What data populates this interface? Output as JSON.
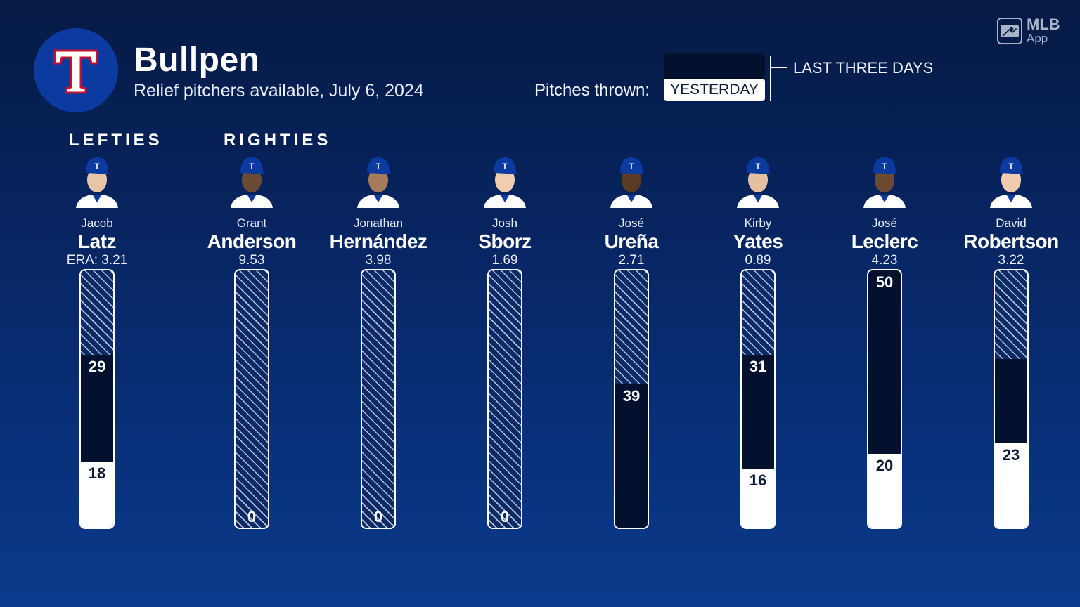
{
  "header": {
    "title": "Bullpen",
    "subtitle": "Relief pitchers available, July 6, 2024",
    "team_logo_icon": "rangers-t-logo-icon",
    "brand_icon": "mlb-app-icon",
    "brand_line1": "MLB",
    "brand_line2": "App"
  },
  "legend": {
    "label": "Pitches thrown:",
    "yesterday": "YESTERDAY",
    "last_three_days": "LAST THREE DAYS"
  },
  "groups": {
    "lefties": "LEFTIES",
    "righties": "RIGHTIES"
  },
  "colors": {
    "background_top": "#061a45",
    "background_bottom": "#0a3a8c",
    "last_three_days": "#03112e",
    "yesterday": "#ffffff",
    "available_hatch": "#0b2a66"
  },
  "chart_data": {
    "type": "bar",
    "stacked": true,
    "categories": [
      "Jacob Latz",
      "Grant Anderson",
      "Jonathan Hernández",
      "Josh Sborz",
      "José Ureña",
      "Kirby Yates",
      "José Leclerc",
      "David Robertson"
    ],
    "series": [
      {
        "name": "YESTERDAY",
        "values": [
          18,
          0,
          0,
          0,
          0,
          16,
          20,
          23
        ]
      },
      {
        "name": "LAST THREE DAYS",
        "values": [
          29,
          0,
          0,
          0,
          39,
          31,
          50,
          23
        ]
      }
    ],
    "ylim": [
      0,
      70
    ],
    "grid": false,
    "legend_position": "top-right"
  },
  "players": [
    {
      "first": "Jacob",
      "last": "Latz",
      "era": "ERA: 3.21",
      "yesterday": 18,
      "three_days": 29,
      "label_3d": "29",
      "label_y": "18"
    },
    {
      "first": "Grant",
      "last": "Anderson",
      "era": "9.53",
      "yesterday": 0,
      "three_days": 0,
      "label_3d": "",
      "label_y": "0"
    },
    {
      "first": "Jonathan",
      "last": "Hernández",
      "era": "3.98",
      "yesterday": 0,
      "three_days": 0,
      "label_3d": "",
      "label_y": "0"
    },
    {
      "first": "Josh",
      "last": "Sborz",
      "era": "1.69",
      "yesterday": 0,
      "three_days": 0,
      "label_3d": "",
      "label_y": "0"
    },
    {
      "first": "José",
      "last": "Ureña",
      "era": "2.71",
      "yesterday": 0,
      "three_days": 39,
      "label_3d": "39",
      "label_y": ""
    },
    {
      "first": "Kirby",
      "last": "Yates",
      "era": "0.89",
      "yesterday": 16,
      "three_days": 31,
      "label_3d": "31",
      "label_y": "16"
    },
    {
      "first": "José",
      "last": "Leclerc",
      "era": "4.23",
      "yesterday": 20,
      "three_days": 50,
      "label_3d": "50",
      "label_y": "20"
    },
    {
      "first": "David",
      "last": "Robertson",
      "era": "3.22",
      "yesterday": 23,
      "three_days": 23,
      "label_3d": "",
      "label_y": "23"
    }
  ]
}
